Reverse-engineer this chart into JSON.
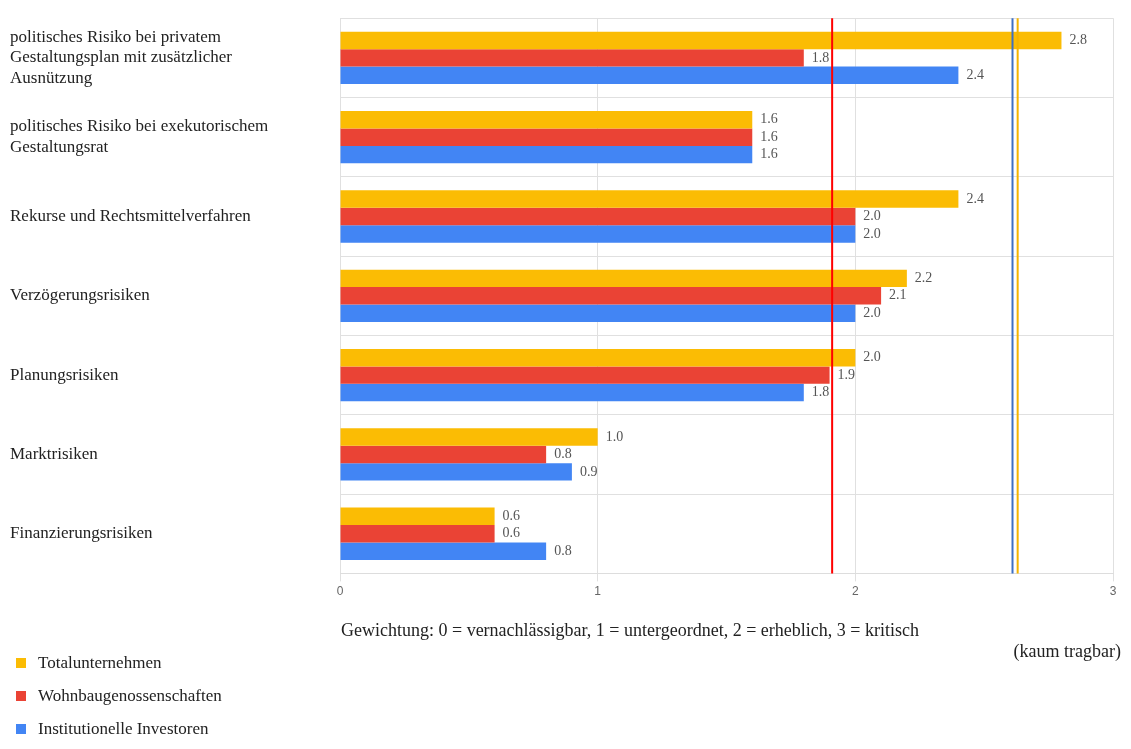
{
  "chart_data": {
    "type": "bar",
    "orientation": "horizontal",
    "xlabel": "Gewichtung: 0 = vernachlässigbar, 1 = untergeordnet, 2 = erheblich, 3 = kritisch (kaum tragbar)",
    "categories": [
      "politisches Risiko bei privatem Gestaltungsplan mit zusätzlicher Ausnützung",
      "politisches Risiko bei exekutorischem Gestaltungsrat",
      "Rekurse und Rechtsmittelverfahren",
      "Verzögerungsrisiken",
      "Planungsrisiken",
      "Marktrisiken",
      "Finanzierungsrisiken"
    ],
    "series": [
      {
        "name": "Totalunternehmen",
        "color": "#fbbc04",
        "values": [
          2.8,
          1.6,
          2.4,
          2.2,
          2.0,
          1.0,
          0.6
        ],
        "value_labels": [
          "2.8",
          "1.6",
          "2.4",
          "2.2",
          "2.0",
          "1.0",
          "0.6"
        ]
      },
      {
        "name": "Wohnbaugenossenschaften",
        "color": "#ea4335",
        "values": [
          1.8,
          1.6,
          2.0,
          2.1,
          1.9,
          0.8,
          0.6
        ],
        "value_labels": [
          "1.8",
          "1.6",
          "2.0",
          "2.1",
          "1.9",
          "0.8",
          "0.6"
        ]
      },
      {
        "name": "Institutionelle Investoren",
        "color": "#4285f4",
        "values": [
          2.4,
          1.6,
          2.0,
          2.0,
          1.8,
          0.9,
          0.8
        ],
        "value_labels": [
          "2.4",
          "1.6",
          "2.0",
          "2.0",
          "1.8",
          "0.9",
          "0.8"
        ]
      }
    ],
    "xlim": [
      0,
      3
    ],
    "xticks": [
      0,
      1,
      2,
      3
    ],
    "grid": true,
    "legend": "bottom left",
    "ref_lines": [
      {
        "axis": "x",
        "value": 1.91,
        "color": "#ff0000"
      },
      {
        "axis": "x",
        "value": 2.61,
        "color": "#3d6fc4"
      },
      {
        "axis": "x",
        "value": 2.63,
        "color": "#f4b400"
      }
    ]
  }
}
